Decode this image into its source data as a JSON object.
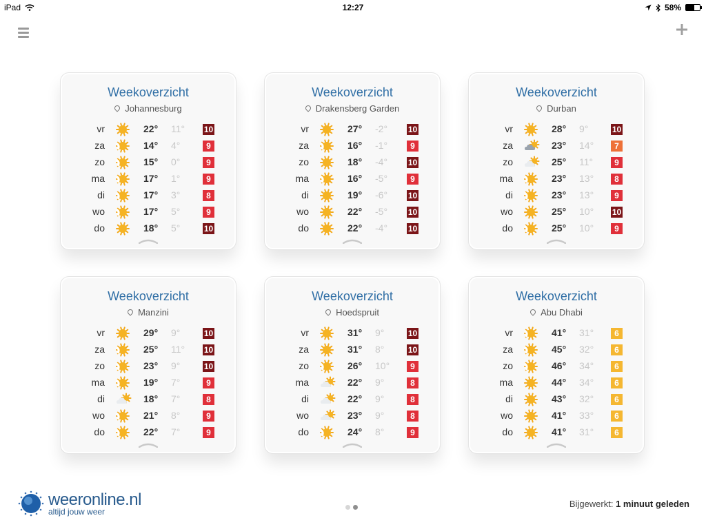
{
  "status_bar": {
    "device": "iPad",
    "time": "12:27",
    "battery": "58%",
    "battery_level": 0.58
  },
  "colors": {
    "title": "#2f6ea5",
    "score_dark": "#7b1518",
    "score_red": "#e0303a",
    "score_orange": "#ee7138",
    "score_yellow": "#f5b731"
  },
  "cards": [
    {
      "title": "Weekoverzicht",
      "location": "Johannesburg",
      "days": [
        {
          "day": "vr",
          "icon": "sun",
          "max": "22°",
          "min": "11°",
          "score": "10",
          "level": "dark"
        },
        {
          "day": "za",
          "icon": "sun-partial",
          "max": "14°",
          "min": "4°",
          "score": "9",
          "level": "red"
        },
        {
          "day": "zo",
          "icon": "sun-partial",
          "max": "15°",
          "min": "0°",
          "score": "9",
          "level": "red"
        },
        {
          "day": "ma",
          "icon": "sun-partial",
          "max": "17°",
          "min": "1°",
          "score": "9",
          "level": "red"
        },
        {
          "day": "di",
          "icon": "sun-partial",
          "max": "17°",
          "min": "3°",
          "score": "8",
          "level": "red"
        },
        {
          "day": "wo",
          "icon": "sun-partial",
          "max": "17°",
          "min": "5°",
          "score": "9",
          "level": "red"
        },
        {
          "day": "do",
          "icon": "sun",
          "max": "18°",
          "min": "5°",
          "score": "10",
          "level": "dark"
        }
      ]
    },
    {
      "title": "Weekoverzicht",
      "location": "Drakensberg Garden",
      "days": [
        {
          "day": "vr",
          "icon": "sun",
          "max": "27°",
          "min": "-2°",
          "score": "10",
          "level": "dark"
        },
        {
          "day": "za",
          "icon": "sun-partial",
          "max": "16°",
          "min": "-1°",
          "score": "9",
          "level": "red"
        },
        {
          "day": "zo",
          "icon": "sun",
          "max": "18°",
          "min": "-4°",
          "score": "10",
          "level": "dark"
        },
        {
          "day": "ma",
          "icon": "sun-partial",
          "max": "16°",
          "min": "-5°",
          "score": "9",
          "level": "red"
        },
        {
          "day": "di",
          "icon": "sun",
          "max": "19°",
          "min": "-6°",
          "score": "10",
          "level": "dark"
        },
        {
          "day": "wo",
          "icon": "sun",
          "max": "22°",
          "min": "-5°",
          "score": "10",
          "level": "dark"
        },
        {
          "day": "do",
          "icon": "sun",
          "max": "22°",
          "min": "-4°",
          "score": "10",
          "level": "dark"
        }
      ]
    },
    {
      "title": "Weekoverzicht",
      "location": "Durban",
      "days": [
        {
          "day": "vr",
          "icon": "sun",
          "max": "28°",
          "min": "9°",
          "score": "10",
          "level": "dark"
        },
        {
          "day": "za",
          "icon": "cloud-sun",
          "max": "23°",
          "min": "14°",
          "score": "7",
          "level": "orange"
        },
        {
          "day": "zo",
          "icon": "cloud-light",
          "max": "25°",
          "min": "11°",
          "score": "9",
          "level": "red"
        },
        {
          "day": "ma",
          "icon": "sun-partial",
          "max": "23°",
          "min": "13°",
          "score": "8",
          "level": "red"
        },
        {
          "day": "di",
          "icon": "sun-partial",
          "max": "23°",
          "min": "13°",
          "score": "9",
          "level": "red"
        },
        {
          "day": "wo",
          "icon": "sun",
          "max": "25°",
          "min": "10°",
          "score": "10",
          "level": "dark"
        },
        {
          "day": "do",
          "icon": "sun-partial",
          "max": "25°",
          "min": "10°",
          "score": "9",
          "level": "red"
        }
      ]
    },
    {
      "title": "Weekoverzicht",
      "location": "Manzini",
      "days": [
        {
          "day": "vr",
          "icon": "sun",
          "max": "29°",
          "min": "9°",
          "score": "10",
          "level": "dark"
        },
        {
          "day": "za",
          "icon": "sun-partial",
          "max": "25°",
          "min": "11°",
          "score": "10",
          "level": "dark"
        },
        {
          "day": "zo",
          "icon": "sun-partial",
          "max": "23°",
          "min": "9°",
          "score": "10",
          "level": "dark"
        },
        {
          "day": "ma",
          "icon": "sun-partial",
          "max": "19°",
          "min": "7°",
          "score": "9",
          "level": "red"
        },
        {
          "day": "di",
          "icon": "cloud-light",
          "max": "18°",
          "min": "7°",
          "score": "8",
          "level": "red"
        },
        {
          "day": "wo",
          "icon": "sun-partial",
          "max": "21°",
          "min": "8°",
          "score": "9",
          "level": "red"
        },
        {
          "day": "do",
          "icon": "sun-partial",
          "max": "22°",
          "min": "7°",
          "score": "9",
          "level": "red"
        }
      ]
    },
    {
      "title": "Weekoverzicht",
      "location": "Hoedspruit",
      "days": [
        {
          "day": "vr",
          "icon": "sun",
          "max": "31°",
          "min": "9°",
          "score": "10",
          "level": "dark"
        },
        {
          "day": "za",
          "icon": "sun",
          "max": "31°",
          "min": "8°",
          "score": "10",
          "level": "dark"
        },
        {
          "day": "zo",
          "icon": "sun-partial",
          "max": "26°",
          "min": "10°",
          "score": "9",
          "level": "red"
        },
        {
          "day": "ma",
          "icon": "cloud-light",
          "max": "22°",
          "min": "9°",
          "score": "8",
          "level": "red"
        },
        {
          "day": "di",
          "icon": "cloud-light",
          "max": "22°",
          "min": "9°",
          "score": "8",
          "level": "red"
        },
        {
          "day": "wo",
          "icon": "cloud-light",
          "max": "23°",
          "min": "9°",
          "score": "8",
          "level": "red"
        },
        {
          "day": "do",
          "icon": "sun-partial",
          "max": "24°",
          "min": "8°",
          "score": "9",
          "level": "red"
        }
      ]
    },
    {
      "title": "Weekoverzicht",
      "location": "Abu Dhabi",
      "days": [
        {
          "day": "vr",
          "icon": "sun-partial",
          "max": "41°",
          "min": "31°",
          "score": "6",
          "level": "yellow"
        },
        {
          "day": "za",
          "icon": "sun-partial",
          "max": "45°",
          "min": "32°",
          "score": "6",
          "level": "yellow"
        },
        {
          "day": "zo",
          "icon": "sun-partial",
          "max": "46°",
          "min": "34°",
          "score": "6",
          "level": "yellow"
        },
        {
          "day": "ma",
          "icon": "sun",
          "max": "44°",
          "min": "34°",
          "score": "6",
          "level": "yellow"
        },
        {
          "day": "di",
          "icon": "sun",
          "max": "43°",
          "min": "32°",
          "score": "6",
          "level": "yellow"
        },
        {
          "day": "wo",
          "icon": "sun",
          "max": "41°",
          "min": "33°",
          "score": "6",
          "level": "yellow"
        },
        {
          "day": "do",
          "icon": "sun",
          "max": "41°",
          "min": "31°",
          "score": "6",
          "level": "yellow"
        }
      ]
    }
  ],
  "footer": {
    "logo_name": "weeronline.nl",
    "logo_tagline": "altijd jouw weer",
    "updated_label": "Bijgewerkt:",
    "updated_value": "1 minuut geleden",
    "page_count": 2,
    "active_page": 1
  }
}
